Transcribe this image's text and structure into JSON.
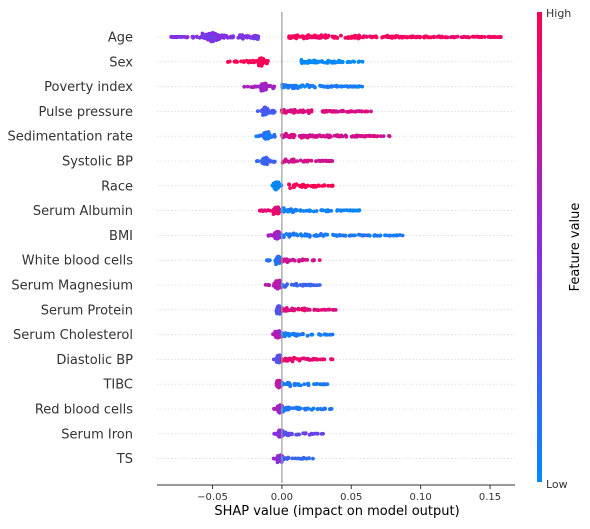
{
  "chart_data": {
    "type": "scatter",
    "subtype": "beeswarm",
    "xlabel": "SHAP value (impact on model output)",
    "x_ticks": [
      -0.05,
      0.0,
      0.05,
      0.1,
      0.15
    ],
    "x_tick_labels": [
      "−0.05",
      "0.00",
      "0.05",
      "0.10",
      "0.15"
    ],
    "xlim": [
      -0.09,
      0.168
    ],
    "colorbar": {
      "label": "Feature value",
      "high_label": "High",
      "low_label": "Low",
      "high_color": "#ff0052",
      "low_color": "#008bfb",
      "mid_color": "#8a2be2"
    },
    "features": [
      {
        "name": "Age",
        "neg": [
          -0.08,
          -0.017
        ],
        "pos": [
          0.005,
          0.158
        ],
        "cluster": -0.05,
        "neg_hue": 0.45,
        "pos_hue": 0.95,
        "neg_density": 1.0,
        "pos_density": 0.9
      },
      {
        "name": "Sex",
        "neg": [
          -0.04,
          -0.01
        ],
        "pos": [
          0.014,
          0.062
        ],
        "cluster": -0.015,
        "neg_hue": 1.0,
        "pos_hue": 0.0,
        "neg_density": 0.9,
        "pos_density": 0.8
      },
      {
        "name": "Poverty index",
        "neg": [
          -0.028,
          -0.005
        ],
        "pos": [
          0.0,
          0.058
        ],
        "cluster": -0.013,
        "neg_hue": 0.6,
        "pos_hue": 0.08,
        "neg_density": 0.8,
        "pos_density": 0.8
      },
      {
        "name": "Pulse pressure",
        "neg": [
          -0.02,
          -0.005
        ],
        "pos": [
          0.0,
          0.065
        ],
        "cluster": -0.012,
        "neg_hue": 0.25,
        "pos_hue": 0.85,
        "neg_density": 0.7,
        "pos_density": 0.9
      },
      {
        "name": "Sedimentation rate",
        "neg": [
          -0.02,
          -0.005
        ],
        "pos": [
          0.0,
          0.079
        ],
        "cluster": -0.011,
        "neg_hue": 0.1,
        "pos_hue": 0.8,
        "neg_density": 0.7,
        "pos_density": 0.9
      },
      {
        "name": "Systolic BP",
        "neg": [
          -0.02,
          -0.005
        ],
        "pos": [
          0.0,
          0.037
        ],
        "cluster": -0.012,
        "neg_hue": 0.2,
        "pos_hue": 0.8,
        "neg_density": 0.7,
        "pos_density": 0.8
      },
      {
        "name": "Race",
        "neg": [
          -0.007,
          0.0
        ],
        "pos": [
          0.005,
          0.037
        ],
        "cluster": -0.004,
        "neg_hue": 0.0,
        "pos_hue": 1.0,
        "neg_density": 0.8,
        "pos_density": 0.8
      },
      {
        "name": "Serum Albumin",
        "neg": [
          -0.016,
          0.0
        ],
        "pos": [
          0.0,
          0.058
        ],
        "cluster": -0.004,
        "neg_hue": 0.9,
        "pos_hue": 0.05,
        "neg_density": 0.8,
        "pos_density": 0.7
      },
      {
        "name": "BMI",
        "neg": [
          -0.01,
          0.0
        ],
        "pos": [
          0.0,
          0.088
        ],
        "cluster": -0.003,
        "neg_hue": 0.6,
        "pos_hue": 0.1,
        "neg_density": 0.8,
        "pos_density": 0.6
      },
      {
        "name": "White blood cells",
        "neg": [
          -0.012,
          0.0
        ],
        "pos": [
          0.0,
          0.028
        ],
        "cluster": -0.002,
        "neg_hue": 0.15,
        "pos_hue": 0.8,
        "neg_density": 0.7,
        "pos_density": 0.8
      },
      {
        "name": "Serum Magnesium",
        "neg": [
          -0.012,
          0.0
        ],
        "pos": [
          0.0,
          0.028
        ],
        "cluster": -0.003,
        "neg_hue": 0.7,
        "pos_hue": 0.2,
        "neg_density": 0.7,
        "pos_density": 0.7
      },
      {
        "name": "Serum Protein",
        "neg": [
          -0.006,
          0.0
        ],
        "pos": [
          0.0,
          0.04
        ],
        "cluster": -0.002,
        "neg_hue": 0.3,
        "pos_hue": 0.85,
        "neg_density": 0.7,
        "pos_density": 0.8
      },
      {
        "name": "Serum Cholesterol",
        "neg": [
          -0.008,
          0.0
        ],
        "pos": [
          0.0,
          0.037
        ],
        "cluster": -0.003,
        "neg_hue": 0.65,
        "pos_hue": 0.1,
        "neg_density": 0.7,
        "pos_density": 0.7
      },
      {
        "name": "Diastolic BP",
        "neg": [
          -0.006,
          0.0
        ],
        "pos": [
          0.0,
          0.037
        ],
        "cluster": -0.002,
        "neg_hue": 0.3,
        "pos_hue": 0.9,
        "neg_density": 0.7,
        "pos_density": 0.8
      },
      {
        "name": "TIBC",
        "neg": [
          -0.006,
          0.0
        ],
        "pos": [
          0.0,
          0.033
        ],
        "cluster": -0.002,
        "neg_hue": 0.7,
        "pos_hue": 0.1,
        "neg_density": 0.7,
        "pos_density": 0.7
      },
      {
        "name": "Red blood cells",
        "neg": [
          -0.006,
          0.0
        ],
        "pos": [
          0.0,
          0.036
        ],
        "cluster": -0.001,
        "neg_hue": 0.6,
        "pos_hue": 0.1,
        "neg_density": 0.7,
        "pos_density": 0.7
      },
      {
        "name": "Serum Iron",
        "neg": [
          -0.006,
          0.0
        ],
        "pos": [
          0.0,
          0.03
        ],
        "cluster": -0.001,
        "neg_hue": 0.5,
        "pos_hue": 0.35,
        "neg_density": 0.6,
        "pos_density": 0.6
      },
      {
        "name": "TS",
        "neg": [
          -0.006,
          0.0
        ],
        "pos": [
          0.0,
          0.024
        ],
        "cluster": -0.001,
        "neg_hue": 0.5,
        "pos_hue": 0.2,
        "neg_density": 0.6,
        "pos_density": 0.6
      }
    ]
  }
}
